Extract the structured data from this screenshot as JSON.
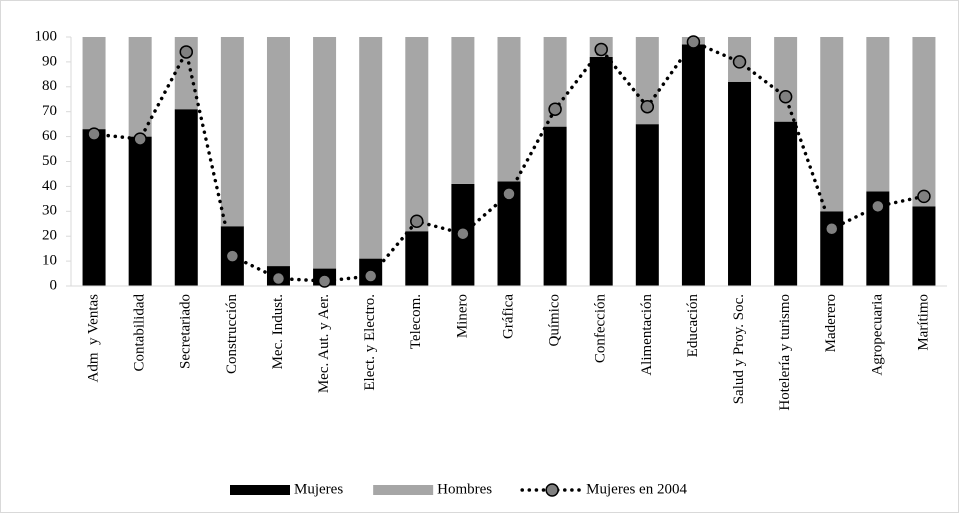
{
  "chart_data": {
    "type": "bar",
    "stacked": true,
    "categories": [
      "Adm  y Ventas",
      "Contabilidad",
      "Secretariado",
      "Construcción",
      "Mec. Indust.",
      "Mec. Aut. y Aer.",
      "Elect. y Electro.",
      "Telecom.",
      "Minero",
      "Gráfica",
      "Químico",
      "Confección",
      "Alimentación",
      "Educación",
      "Salud y Proy. Soc.",
      "Hotelería y turismo",
      "Maderero",
      "Agropecuaria",
      "Marítimo"
    ],
    "series": [
      {
        "name": "Mujeres",
        "color": "#000000",
        "type": "bar",
        "values": [
          63,
          60,
          71,
          24,
          8,
          7,
          11,
          22,
          41,
          42,
          64,
          92,
          65,
          97,
          82,
          66,
          30,
          38,
          32
        ]
      },
      {
        "name": "Hombres",
        "color": "#a6a6a6",
        "type": "bar",
        "values": [
          37,
          40,
          29,
          76,
          92,
          93,
          89,
          78,
          59,
          58,
          36,
          8,
          35,
          3,
          18,
          34,
          70,
          62,
          68
        ]
      },
      {
        "name": "Mujeres en 2004",
        "color": "#808080",
        "type": "line",
        "values": [
          61,
          59,
          94,
          12,
          3,
          2,
          4,
          26,
          21,
          37,
          71,
          95,
          72,
          98,
          90,
          76,
          23,
          32,
          36
        ]
      }
    ],
    "ylim": [
      0,
      100
    ],
    "yticks": [
      0,
      10,
      20,
      30,
      40,
      50,
      60,
      70,
      80,
      90,
      100
    ],
    "legend": "bottom"
  }
}
